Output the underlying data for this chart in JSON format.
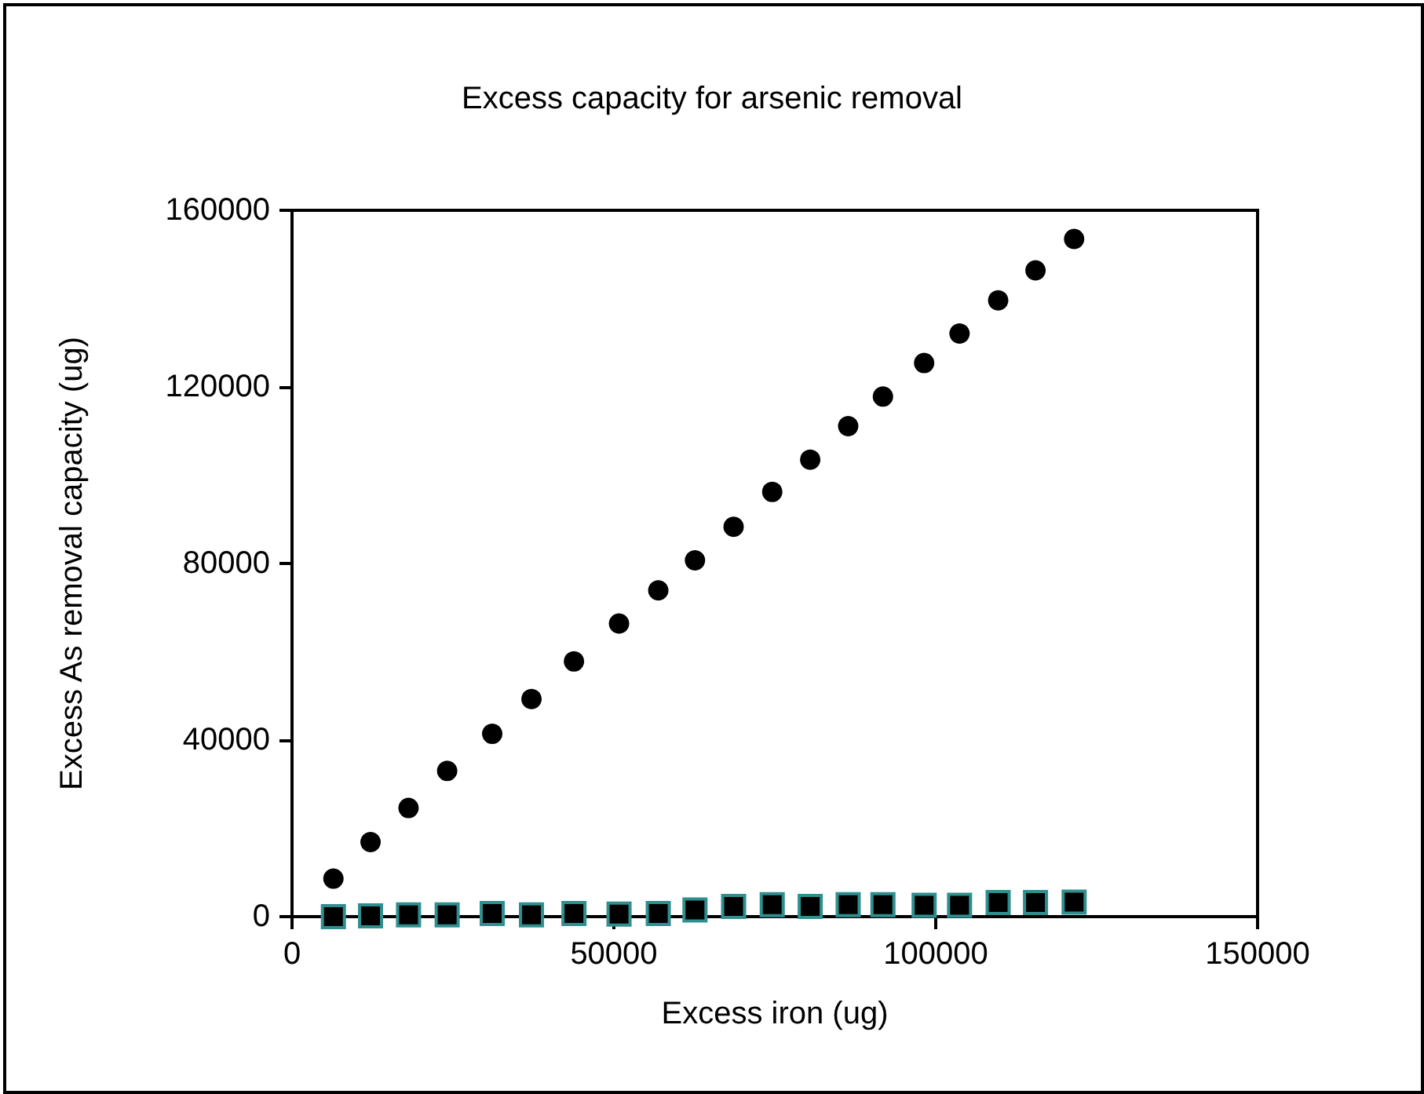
{
  "chart_data": {
    "type": "scatter",
    "title": "Excess capacity for arsenic removal",
    "xlabel": "Excess iron (ug)",
    "ylabel": "Excess As removal capacity (ug)",
    "x": [
      6430,
      12200,
      18100,
      24100,
      31100,
      37200,
      43800,
      50800,
      56900,
      62600,
      68600,
      74600,
      80500,
      86400,
      91800,
      98200,
      103700,
      109700,
      115500,
      121500
    ],
    "series": [
      {
        "color": "#000000",
        "marker": "circle",
        "values": [
          8600,
          16900,
          24600,
          33000,
          41400,
          49300,
          57800,
          66400,
          73900,
          80700,
          88300,
          96200,
          103500,
          111100,
          117800,
          125400,
          132100,
          139600,
          146400,
          153500
        ]
      },
      {
        "color": "#000000",
        "marker": "square",
        "values": [
          0,
          200,
          400,
          400,
          700,
          400,
          700,
          600,
          700,
          1500,
          2300,
          2700,
          2300,
          2700,
          2700,
          2600,
          2600,
          3200,
          3200,
          3300
        ]
      }
    ],
    "xlim": [
      0,
      150000
    ],
    "xticks": [
      0,
      50000,
      100000,
      150000
    ],
    "ylim": [
      0,
      160000
    ],
    "yticks": [
      0,
      40000,
      80000,
      120000,
      160000
    ],
    "grid": false
  }
}
